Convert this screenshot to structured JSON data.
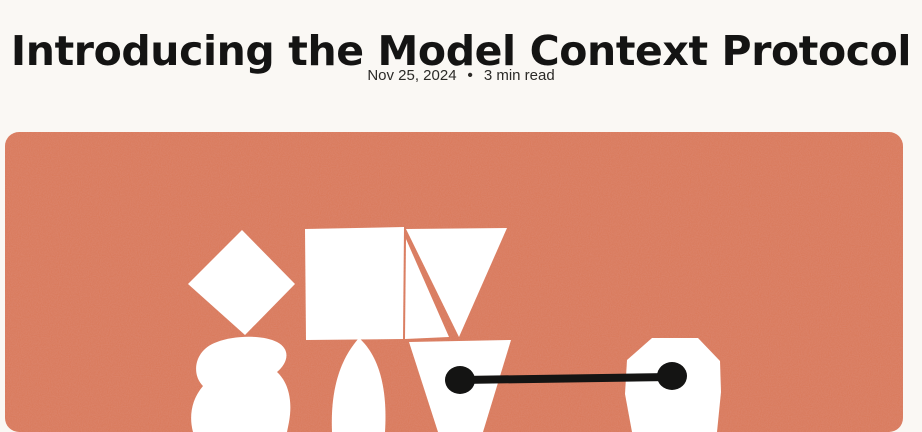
{
  "article": {
    "title": "Introducing the Model Context Protocol",
    "date": "Nov 25, 2024",
    "separator": "•",
    "read_time": "3 min read"
  },
  "hero": {
    "background_color": "#d97757",
    "shape_color": "#ffffff",
    "line_color": "#141413"
  }
}
